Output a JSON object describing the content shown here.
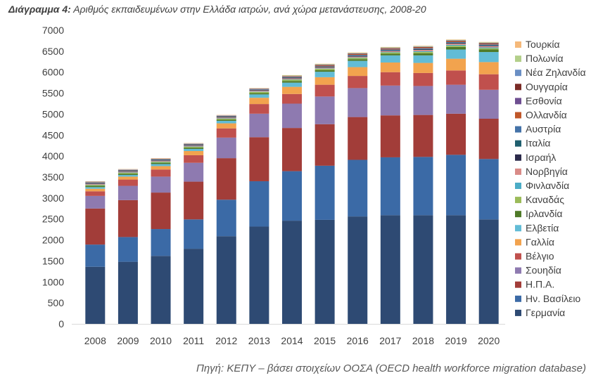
{
  "title": {
    "prefix": "Διάγραμμα 4:",
    "text": "Αριθμός εκπαιδευμένων στην Ελλάδα ιατρών, ανά χώρα μετανάστευσης, 2008-20"
  },
  "source": "Πηγή: ΚΕΠΥ – βάσει στοιχείων ΟΟΣΑ (OECD health workforce migration database)",
  "chart_data": {
    "type": "bar",
    "stacked": true,
    "categories": [
      "2008",
      "2009",
      "2010",
      "2011",
      "2012",
      "2013",
      "2014",
      "2015",
      "2016",
      "2017",
      "2018",
      "2019",
      "2020"
    ],
    "ylim": [
      0,
      7000
    ],
    "yticks": [
      0,
      500,
      1000,
      1500,
      2000,
      2500,
      3000,
      3500,
      4000,
      4500,
      5000,
      5500,
      6000,
      6500,
      7000
    ],
    "grid": false,
    "legend_position": "right",
    "series": [
      {
        "name": "Γερμανία",
        "color": "#2E4A73",
        "values": [
          1360,
          1480,
          1620,
          1790,
          2090,
          2320,
          2460,
          2480,
          2560,
          2590,
          2590,
          2590,
          2490
        ]
      },
      {
        "name": "Ην. Βασίλειο",
        "color": "#3B6AA6",
        "values": [
          530,
          590,
          640,
          700,
          870,
          1080,
          1180,
          1290,
          1350,
          1380,
          1390,
          1440,
          1440
        ]
      },
      {
        "name": "Η.Π.Α.",
        "color": "#A23D39",
        "values": [
          860,
          880,
          870,
          900,
          990,
          1050,
          1030,
          990,
          1020,
          1000,
          1000,
          980,
          960
        ]
      },
      {
        "name": "Σουηδία",
        "color": "#8E7AB0",
        "values": [
          300,
          340,
          380,
          450,
          490,
          560,
          580,
          660,
          690,
          710,
          690,
          690,
          690
        ]
      },
      {
        "name": "Βέλγιο",
        "color": "#C0504D",
        "values": [
          110,
          150,
          170,
          180,
          220,
          230,
          230,
          280,
          290,
          320,
          310,
          340,
          370
        ]
      },
      {
        "name": "Γαλλία",
        "color": "#F2A34E",
        "values": [
          60,
          70,
          80,
          100,
          120,
          150,
          170,
          180,
          210,
          230,
          240,
          280,
          290
        ]
      },
      {
        "name": "Ελβετία",
        "color": "#62BCD6",
        "values": [
          40,
          40,
          50,
          50,
          60,
          80,
          100,
          130,
          150,
          170,
          180,
          220,
          240
        ]
      },
      {
        "name": "Ιρλανδία",
        "color": "#4F7A28",
        "values": [
          30,
          30,
          30,
          30,
          30,
          30,
          40,
          40,
          40,
          40,
          50,
          60,
          60
        ]
      },
      {
        "name": "Καναδάς",
        "color": "#9BBB59",
        "values": [
          20,
          20,
          20,
          20,
          20,
          30,
          30,
          30,
          30,
          30,
          30,
          30,
          30
        ]
      },
      {
        "name": "Φινλανδία",
        "color": "#4BACC6",
        "values": [
          10,
          10,
          10,
          10,
          10,
          10,
          10,
          10,
          10,
          10,
          20,
          20,
          20
        ]
      },
      {
        "name": "Νορβηγία",
        "color": "#D98B87",
        "values": [
          20,
          20,
          20,
          20,
          20,
          20,
          20,
          20,
          20,
          20,
          30,
          30,
          30
        ]
      },
      {
        "name": "Ισραήλ",
        "color": "#2B2A4A",
        "values": [
          10,
          10,
          10,
          10,
          10,
          10,
          10,
          10,
          10,
          10,
          10,
          10,
          10
        ]
      },
      {
        "name": "Ιταλία",
        "color": "#1F5F6E",
        "values": [
          10,
          10,
          10,
          10,
          10,
          10,
          10,
          10,
          10,
          10,
          10,
          10,
          10
        ]
      },
      {
        "name": "Αυστρία",
        "color": "#4472A8",
        "values": [
          10,
          10,
          10,
          10,
          10,
          10,
          10,
          10,
          20,
          20,
          20,
          20,
          20
        ]
      },
      {
        "name": "Ολλανδία",
        "color": "#C0572A",
        "values": [
          10,
          10,
          10,
          10,
          10,
          10,
          10,
          20,
          20,
          20,
          20,
          20,
          20
        ]
      },
      {
        "name": "Εσθονία",
        "color": "#6E4E91",
        "values": [
          0,
          0,
          0,
          0,
          0,
          0,
          0,
          0,
          0,
          0,
          0,
          0,
          0
        ]
      },
      {
        "name": "Ουγγαρία",
        "color": "#7A2B26",
        "values": [
          0,
          0,
          0,
          0,
          0,
          0,
          10,
          10,
          10,
          10,
          10,
          10,
          10
        ]
      },
      {
        "name": "Νέα Ζηλανδία",
        "color": "#6A8FC4",
        "values": [
          10,
          10,
          10,
          10,
          10,
          10,
          10,
          10,
          10,
          10,
          10,
          10,
          10
        ]
      },
      {
        "name": "Πολωνία",
        "color": "#B3CF8A",
        "values": [
          0,
          0,
          0,
          0,
          0,
          0,
          10,
          10,
          10,
          10,
          10,
          10,
          10
        ]
      },
      {
        "name": "Τουρκία",
        "color": "#F5B97A",
        "values": [
          10,
          10,
          10,
          10,
          10,
          10,
          10,
          10,
          10,
          10,
          10,
          10,
          10
        ]
      }
    ]
  }
}
